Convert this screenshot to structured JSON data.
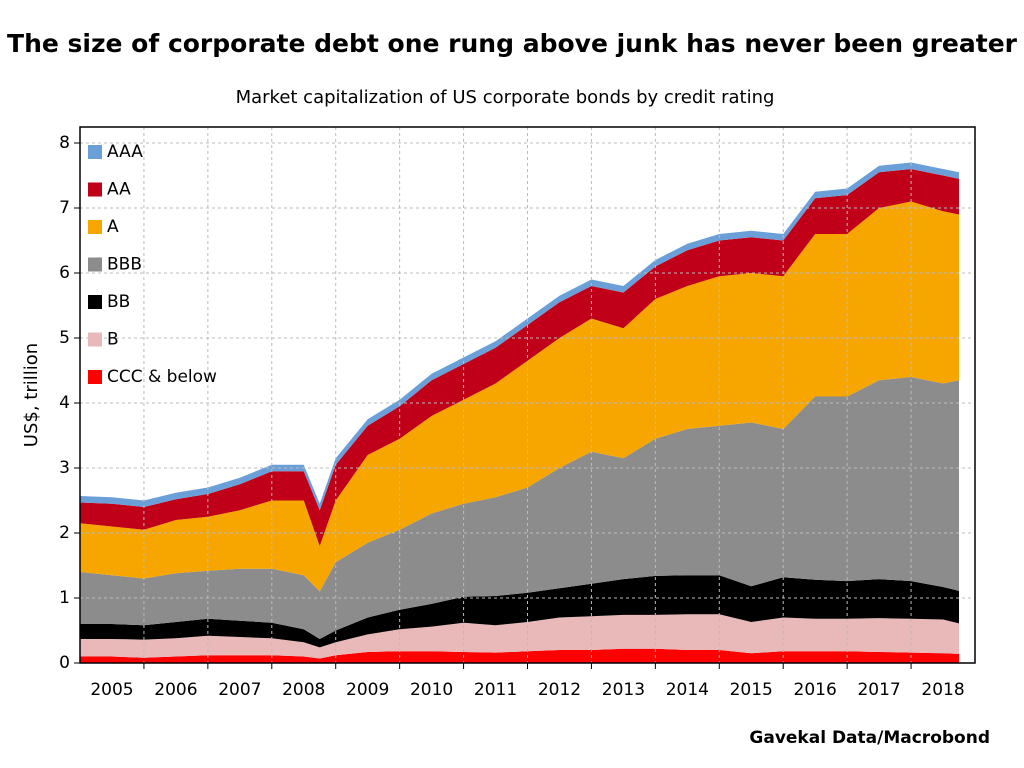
{
  "chart_data": {
    "type": "stacked-area",
    "title": "The size of corporate debt one rung above junk has never been greater",
    "subtitle": "Market capitalization of US corporate bonds by credit rating",
    "y_label": "US$, trillion",
    "source": "Gavekal Data/Macrobond",
    "x": [
      2005,
      2005.5,
      2006,
      2006.5,
      2007,
      2007.5,
      2008,
      2008.5,
      2008.75,
      2009,
      2009.5,
      2010,
      2010.5,
      2011,
      2011.5,
      2012,
      2012.5,
      2013,
      2013.5,
      2014,
      2014.5,
      2015,
      2015.5,
      2016,
      2016.5,
      2017,
      2017.5,
      2018,
      2018.5,
      2018.75
    ],
    "series": [
      {
        "name": "AAA",
        "color": "#6a9fd8",
        "values": [
          0.1,
          0.1,
          0.1,
          0.1,
          0.1,
          0.1,
          0.1,
          0.1,
          0.1,
          0.1,
          0.1,
          0.1,
          0.1,
          0.1,
          0.1,
          0.1,
          0.1,
          0.1,
          0.1,
          0.1,
          0.1,
          0.1,
          0.1,
          0.1,
          0.1,
          0.1,
          0.1,
          0.1,
          0.1,
          0.1
        ]
      },
      {
        "name": "AA",
        "color": "#c00018",
        "values": [
          0.32,
          0.35,
          0.35,
          0.32,
          0.35,
          0.4,
          0.45,
          0.45,
          0.55,
          0.55,
          0.45,
          0.5,
          0.55,
          0.55,
          0.55,
          0.55,
          0.55,
          0.5,
          0.55,
          0.5,
          0.55,
          0.55,
          0.55,
          0.55,
          0.55,
          0.6,
          0.55,
          0.5,
          0.55,
          0.55
        ]
      },
      {
        "name": "A",
        "color": "#f7a600",
        "values": [
          0.75,
          0.75,
          0.75,
          0.82,
          0.83,
          0.9,
          1.05,
          1.15,
          0.7,
          0.95,
          1.35,
          1.4,
          1.5,
          1.6,
          1.75,
          1.95,
          2.0,
          2.05,
          2.0,
          2.15,
          2.2,
          2.3,
          2.3,
          2.35,
          2.5,
          2.5,
          2.65,
          2.7,
          2.65,
          2.55
        ]
      },
      {
        "name": "BBB",
        "color": "#8c8c8c",
        "values": [
          0.8,
          0.75,
          0.72,
          0.75,
          0.74,
          0.8,
          0.83,
          0.83,
          0.73,
          1.05,
          1.15,
          1.23,
          1.39,
          1.43,
          1.52,
          1.62,
          1.85,
          2.03,
          1.86,
          2.11,
          2.25,
          2.3,
          2.52,
          2.28,
          2.82,
          2.84,
          3.06,
          3.14,
          3.13,
          3.24
        ]
      },
      {
        "name": "BB",
        "color": "#000000",
        "values": [
          0.23,
          0.23,
          0.22,
          0.25,
          0.26,
          0.25,
          0.24,
          0.2,
          0.13,
          0.18,
          0.26,
          0.3,
          0.35,
          0.4,
          0.45,
          0.45,
          0.45,
          0.5,
          0.55,
          0.6,
          0.6,
          0.6,
          0.55,
          0.62,
          0.6,
          0.58,
          0.6,
          0.58,
          0.5,
          0.5
        ]
      },
      {
        "name": "B",
        "color": "#e9b8b8",
        "values": [
          0.27,
          0.27,
          0.28,
          0.28,
          0.3,
          0.28,
          0.26,
          0.22,
          0.17,
          0.2,
          0.27,
          0.34,
          0.38,
          0.45,
          0.42,
          0.45,
          0.5,
          0.52,
          0.52,
          0.52,
          0.55,
          0.55,
          0.48,
          0.52,
          0.5,
          0.5,
          0.52,
          0.52,
          0.52,
          0.47
        ]
      },
      {
        "name": "CCC & below",
        "color": "#ff0000",
        "values": [
          0.1,
          0.1,
          0.08,
          0.1,
          0.12,
          0.12,
          0.12,
          0.1,
          0.07,
          0.12,
          0.17,
          0.18,
          0.18,
          0.17,
          0.16,
          0.18,
          0.2,
          0.2,
          0.22,
          0.22,
          0.2,
          0.2,
          0.15,
          0.18,
          0.18,
          0.18,
          0.17,
          0.16,
          0.15,
          0.14
        ]
      }
    ],
    "xlim": [
      2005,
      2019
    ],
    "xticks": [
      {
        "value": 2005.5,
        "label": "2005"
      },
      {
        "value": 2006.5,
        "label": "2006"
      },
      {
        "value": 2007.5,
        "label": "2007"
      },
      {
        "value": 2008.5,
        "label": "2008"
      },
      {
        "value": 2009.5,
        "label": "2009"
      },
      {
        "value": 2010.5,
        "label": "2010"
      },
      {
        "value": 2011.5,
        "label": "2011"
      },
      {
        "value": 2012.5,
        "label": "2012"
      },
      {
        "value": 2013.5,
        "label": "2013"
      },
      {
        "value": 2014.5,
        "label": "2014"
      },
      {
        "value": 2015.5,
        "label": "2015"
      },
      {
        "value": 2016.5,
        "label": "2016"
      },
      {
        "value": 2017.5,
        "label": "2017"
      },
      {
        "value": 2018.5,
        "label": "2018"
      }
    ],
    "xgrid": [
      2006,
      2007,
      2008,
      2009,
      2010,
      2011,
      2012,
      2013,
      2014,
      2015,
      2016,
      2017,
      2018
    ],
    "ylim": [
      0,
      8
    ],
    "yticks": [
      0,
      1,
      2,
      3,
      4,
      5,
      6,
      7,
      8
    ],
    "grid": true,
    "legend": "top-left"
  }
}
